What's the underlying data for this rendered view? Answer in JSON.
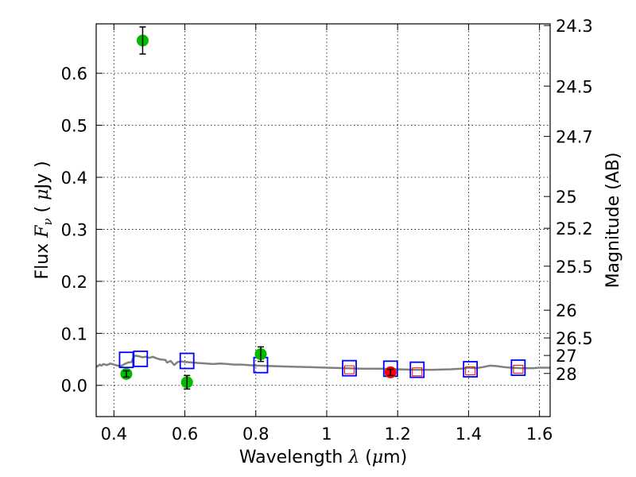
{
  "chart_data": {
    "type": "scatter",
    "title": "",
    "xlabel_prefix": "Wavelength  ",
    "xlabel_symbol": "λ",
    "xlabel_unit_open": " (",
    "xlabel_unit_mu": "μ",
    "xlabel_unit_close": "m)",
    "ylabel_prefix": "Flux  ",
    "ylabel_symbol": "F",
    "ylabel_subscript": "ν",
    "ylabel_unit_open": "  ( ",
    "ylabel_unit_mu": "μ",
    "ylabel_unit_close": "Jy )",
    "y2label": "Magnitude (AB)",
    "xlim": [
      0.35,
      1.63
    ],
    "ylim": [
      -0.06,
      0.695
    ],
    "grid": true,
    "x_ticks": [
      {
        "value": 0.4,
        "label": "0.4"
      },
      {
        "value": 0.6,
        "label": "0.6"
      },
      {
        "value": 0.8,
        "label": "0.8"
      },
      {
        "value": 1.0,
        "label": "1"
      },
      {
        "value": 1.2,
        "label": "1.2"
      },
      {
        "value": 1.4,
        "label": "1.4"
      },
      {
        "value": 1.6,
        "label": "1.6"
      }
    ],
    "y_ticks": [
      {
        "value": 0.0,
        "label": "0.0"
      },
      {
        "value": 0.1,
        "label": "0.1"
      },
      {
        "value": 0.2,
        "label": "0.2"
      },
      {
        "value": 0.3,
        "label": "0.3"
      },
      {
        "value": 0.4,
        "label": "0.4"
      },
      {
        "value": 0.5,
        "label": "0.5"
      },
      {
        "value": 0.6,
        "label": "0.6"
      }
    ],
    "y2_ticks": [
      {
        "flux": 0.6918,
        "label": "24.3"
      },
      {
        "flux": 0.5754,
        "label": "24.5"
      },
      {
        "flux": 0.4786,
        "label": "24.7"
      },
      {
        "flux": 0.3631,
        "label": "25"
      },
      {
        "flux": 0.302,
        "label": "25.2"
      },
      {
        "flux": 0.2291,
        "label": "25.5"
      },
      {
        "flux": 0.1445,
        "label": "26"
      },
      {
        "flux": 0.0912,
        "label": "26.5"
      },
      {
        "flux": 0.0575,
        "label": "27"
      },
      {
        "flux": 0.0229,
        "label": "28"
      }
    ],
    "series": [
      {
        "name": "model_spectrum",
        "kind": "line",
        "color": "#808080",
        "points": [
          [
            0.35,
            0.035
          ],
          [
            0.36,
            0.04
          ],
          [
            0.365,
            0.038
          ],
          [
            0.37,
            0.041
          ],
          [
            0.38,
            0.039
          ],
          [
            0.39,
            0.042
          ],
          [
            0.4,
            0.04
          ],
          [
            0.41,
            0.038
          ],
          [
            0.42,
            0.037
          ],
          [
            0.43,
            0.041
          ],
          [
            0.44,
            0.044
          ],
          [
            0.45,
            0.045
          ],
          [
            0.455,
            0.054
          ],
          [
            0.46,
            0.057
          ],
          [
            0.47,
            0.056
          ],
          [
            0.48,
            0.054
          ],
          [
            0.49,
            0.055
          ],
          [
            0.5,
            0.053
          ],
          [
            0.51,
            0.055
          ],
          [
            0.52,
            0.052
          ],
          [
            0.53,
            0.05
          ],
          [
            0.545,
            0.049
          ],
          [
            0.55,
            0.044
          ],
          [
            0.56,
            0.047
          ],
          [
            0.57,
            0.039
          ],
          [
            0.58,
            0.045
          ],
          [
            0.59,
            0.046
          ],
          [
            0.6,
            0.045
          ],
          [
            0.62,
            0.044
          ],
          [
            0.64,
            0.043
          ],
          [
            0.66,
            0.042
          ],
          [
            0.68,
            0.041
          ],
          [
            0.7,
            0.042
          ],
          [
            0.72,
            0.041
          ],
          [
            0.74,
            0.04
          ],
          [
            0.76,
            0.04
          ],
          [
            0.8,
            0.038
          ],
          [
            0.85,
            0.037
          ],
          [
            0.9,
            0.036
          ],
          [
            0.95,
            0.035
          ],
          [
            1.0,
            0.034
          ],
          [
            1.05,
            0.033
          ],
          [
            1.1,
            0.032
          ],
          [
            1.15,
            0.032
          ],
          [
            1.2,
            0.031
          ],
          [
            1.25,
            0.03
          ],
          [
            1.3,
            0.03
          ],
          [
            1.35,
            0.031
          ],
          [
            1.38,
            0.032
          ],
          [
            1.4,
            0.034
          ],
          [
            1.42,
            0.033
          ],
          [
            1.44,
            0.035
          ],
          [
            1.46,
            0.038
          ],
          [
            1.48,
            0.037
          ],
          [
            1.5,
            0.035
          ],
          [
            1.52,
            0.034
          ],
          [
            1.55,
            0.033
          ],
          [
            1.58,
            0.033
          ],
          [
            1.6,
            0.034
          ],
          [
            1.63,
            0.034
          ]
        ]
      },
      {
        "name": "model_bandpass",
        "kind": "square_marker",
        "color": "#0000ff",
        "points": [
          [
            0.435,
            0.049
          ],
          [
            0.475,
            0.051
          ],
          [
            0.606,
            0.047
          ],
          [
            0.814,
            0.039
          ],
          [
            1.064,
            0.033
          ],
          [
            1.18,
            0.032
          ],
          [
            1.255,
            0.03
          ],
          [
            1.405,
            0.031
          ],
          [
            1.54,
            0.034
          ]
        ]
      },
      {
        "name": "detections",
        "kind": "circle_marker",
        "color": "#00bb00",
        "points": [
          [
            0.435,
            0.022,
            0.006
          ],
          [
            0.481,
            0.663,
            0.026
          ],
          [
            0.606,
            0.006,
            0.013
          ],
          [
            0.814,
            0.06,
            0.014
          ]
        ]
      },
      {
        "name": "irac_detection",
        "kind": "circle_marker",
        "color": "#ff0000",
        "points": [
          [
            1.18,
            0.025,
            0.006
          ]
        ]
      },
      {
        "name": "upper_limits",
        "kind": "small_square_marker",
        "color": "#ff0000",
        "points": [
          [
            1.064,
            0.03
          ],
          [
            1.255,
            0.026
          ],
          [
            1.405,
            0.028
          ],
          [
            1.54,
            0.031
          ]
        ]
      }
    ]
  }
}
